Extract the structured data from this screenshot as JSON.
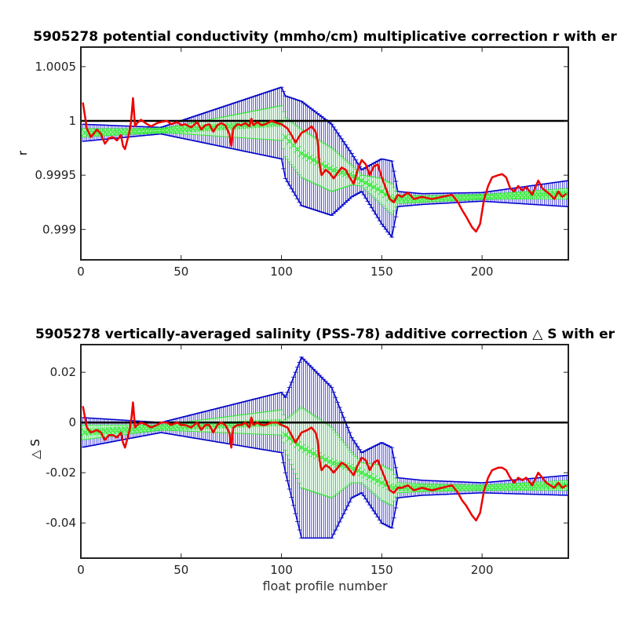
{
  "chart_data": [
    {
      "type": "line",
      "title": "5905278 potential conductivity (mmho/cm) multiplicative correction r with er",
      "xlabel": "",
      "ylabel": "r",
      "xlim": [
        0,
        243
      ],
      "ylim": [
        0.99872,
        1.00068
      ],
      "xticks": [
        "0",
        "50",
        "100",
        "150",
        "200"
      ],
      "yticks": [
        {
          "value": 0.999,
          "label": "0.999"
        },
        {
          "value": 0.9995,
          "label": "0.9995"
        },
        {
          "value": 1.0,
          "label": "1"
        },
        {
          "value": 1.0005,
          "label": "1.0005"
        }
      ],
      "reference_line": 1.0,
      "grid": false,
      "series": [
        {
          "role": "fit-with-error-bars-wide",
          "color": "#0000cc",
          "x": [
            0,
            40,
            100,
            102,
            110,
            125,
            135,
            140,
            150,
            155,
            158,
            170,
            200,
            243
          ],
          "center": [
            0.99989,
            0.99991,
            0.99998,
            0.99985,
            0.9997,
            0.99955,
            0.9995,
            0.99945,
            0.99935,
            0.99928,
            0.99928,
            0.99928,
            0.9993,
            0.99933
          ],
          "half": [
            8e-05,
            3e-05,
            0.00033,
            0.00038,
            0.00048,
            0.00042,
            0.0002,
            0.0001,
            0.0003,
            0.00035,
            7e-05,
            5e-05,
            4e-05,
            0.00012
          ]
        },
        {
          "role": "fit-with-error-bars-narrow",
          "color": "#33ee33",
          "x": [
            0,
            40,
            100,
            102,
            110,
            125,
            135,
            140,
            150,
            155,
            158,
            170,
            200,
            243
          ],
          "center": [
            0.99989,
            0.99991,
            0.99998,
            0.99985,
            0.9997,
            0.99955,
            0.9995,
            0.99945,
            0.99935,
            0.99928,
            0.99928,
            0.99928,
            0.9993,
            0.99933
          ],
          "half": [
            4e-05,
            1.5e-05,
            0.00016,
            0.00018,
            0.00022,
            0.0002,
            9e-05,
            5e-05,
            0.00012,
            0.00014,
            4e-05,
            3e-05,
            2e-05,
            5e-05
          ]
        },
        {
          "role": "profile-estimate",
          "color": "#ee0000",
          "x": [
            1,
            3,
            5,
            8,
            10,
            12,
            14,
            16,
            18,
            20,
            21,
            22,
            24,
            25,
            26,
            27,
            28,
            30,
            33,
            35,
            38,
            40,
            43,
            45,
            48,
            50,
            52,
            55,
            58,
            60,
            62,
            64,
            66,
            68,
            70,
            72,
            74,
            75,
            76,
            78,
            80,
            82,
            84,
            85,
            86,
            88,
            90,
            92,
            95,
            98,
            100,
            103,
            105,
            107,
            110,
            113,
            115,
            117,
            118,
            119,
            120,
            122,
            124,
            126,
            128,
            130,
            132,
            134,
            136,
            138,
            140,
            142,
            144,
            146,
            148,
            150,
            152,
            154,
            156,
            158,
            160,
            163,
            166,
            170,
            175,
            180,
            185,
            188,
            190,
            192,
            195,
            197,
            199,
            201,
            203,
            205,
            208,
            210,
            212,
            214,
            216,
            218,
            220,
            222,
            225,
            228,
            230,
            232,
            234,
            236,
            238,
            240,
            242
          ],
          "y": [
            1.00017,
            0.99993,
            0.99985,
            0.99992,
            0.99988,
            0.99979,
            0.99984,
            0.99985,
            0.99982,
            0.99987,
            0.99977,
            0.99974,
            0.99988,
            0.99999,
            1.00021,
            0.99995,
            0.99998,
            1.00001,
            0.99997,
            0.99995,
            0.99998,
            0.99999,
            1.0,
            0.99997,
            0.99999,
            0.99996,
            0.99997,
            0.99994,
            0.99999,
            0.99992,
            0.99996,
            0.99997,
            0.9999,
            0.99996,
            0.99998,
            0.99996,
            0.99988,
            0.99977,
            0.99993,
            0.99997,
            0.99996,
            0.99998,
            0.99995,
            1.00002,
            0.99996,
            0.99999,
            0.99996,
            0.99997,
            1.0,
            0.99998,
            0.99997,
            0.99993,
            0.99987,
            0.9998,
            0.99989,
            0.99992,
            0.99995,
            0.9999,
            0.99982,
            0.9996,
            0.9995,
            0.99955,
            0.99952,
            0.99947,
            0.99952,
            0.99957,
            0.99955,
            0.99948,
            0.99942,
            0.99955,
            0.99964,
            0.9996,
            0.9995,
            0.99958,
            0.9996,
            0.99948,
            0.99938,
            0.99928,
            0.99925,
            0.99932,
            0.9993,
            0.99934,
            0.99928,
            0.9993,
            0.99928,
            0.9993,
            0.99932,
            0.99925,
            0.99918,
            0.99912,
            0.99902,
            0.99898,
            0.99905,
            0.99928,
            0.9994,
            0.99948,
            0.9995,
            0.99951,
            0.99948,
            0.99938,
            0.99935,
            0.9994,
            0.99936,
            0.99939,
            0.99932,
            0.99945,
            0.99938,
            0.99935,
            0.99932,
            0.99928,
            0.99935,
            0.9993,
            0.99933
          ]
        }
      ]
    },
    {
      "type": "line",
      "title": "5905278 vertically-averaged salinity (PSS-78) additive correction △ S with er",
      "xlabel": "float profile number",
      "ylabel": "△ S",
      "xlim": [
        0,
        243
      ],
      "ylim": [
        -0.054,
        0.031
      ],
      "xticks": [
        "0",
        "50",
        "100",
        "150",
        "200"
      ],
      "yticks": [
        {
          "value": -0.04,
          "label": "-0.04"
        },
        {
          "value": -0.02,
          "label": "-0.02"
        },
        {
          "value": 0.0,
          "label": "0"
        },
        {
          "value": 0.02,
          "label": "0.02"
        }
      ],
      "reference_line": 0.0,
      "grid": false,
      "series": [
        {
          "role": "fit-with-error-bars-wide",
          "color": "#0000cc",
          "x": [
            0,
            40,
            100,
            102,
            110,
            125,
            135,
            140,
            150,
            155,
            158,
            170,
            200,
            243
          ],
          "center": [
            -0.004,
            -0.002,
            0.0,
            -0.005,
            -0.01,
            -0.016,
            -0.018,
            -0.02,
            -0.024,
            -0.026,
            -0.026,
            -0.026,
            -0.026,
            -0.025
          ],
          "half": [
            0.006,
            0.002,
            0.012,
            0.015,
            0.036,
            0.03,
            0.012,
            0.008,
            0.016,
            0.016,
            0.004,
            0.003,
            0.002,
            0.004
          ]
        },
        {
          "role": "fit-with-error-bars-narrow",
          "color": "#33ee33",
          "x": [
            0,
            40,
            100,
            102,
            110,
            125,
            135,
            140,
            150,
            155,
            158,
            170,
            200,
            243
          ],
          "center": [
            -0.004,
            -0.002,
            0.0,
            -0.005,
            -0.01,
            -0.016,
            -0.018,
            -0.02,
            -0.024,
            -0.026,
            -0.026,
            -0.026,
            -0.026,
            -0.025
          ],
          "half": [
            0.003,
            0.001,
            0.005,
            0.006,
            0.016,
            0.014,
            0.006,
            0.004,
            0.007,
            0.007,
            0.002,
            0.0015,
            0.001,
            0.002
          ]
        },
        {
          "role": "profile-estimate",
          "color": "#ee0000",
          "x": [
            1,
            3,
            5,
            8,
            10,
            12,
            14,
            16,
            18,
            20,
            21,
            22,
            24,
            25,
            26,
            27,
            28,
            30,
            33,
            35,
            38,
            40,
            43,
            45,
            48,
            50,
            52,
            55,
            58,
            60,
            62,
            64,
            66,
            68,
            70,
            72,
            74,
            75,
            76,
            78,
            80,
            82,
            84,
            85,
            86,
            88,
            90,
            92,
            95,
            98,
            100,
            103,
            105,
            107,
            110,
            113,
            115,
            117,
            118,
            119,
            120,
            122,
            124,
            126,
            128,
            130,
            132,
            134,
            136,
            138,
            140,
            142,
            144,
            146,
            148,
            150,
            152,
            154,
            156,
            158,
            160,
            163,
            166,
            170,
            175,
            180,
            185,
            188,
            190,
            192,
            195,
            197,
            199,
            201,
            203,
            205,
            208,
            210,
            212,
            214,
            216,
            218,
            220,
            222,
            225,
            228,
            230,
            232,
            234,
            236,
            238,
            240,
            242
          ],
          "y": [
            0.0065,
            -0.002,
            -0.004,
            -0.003,
            -0.004,
            -0.007,
            -0.005,
            -0.005,
            -0.006,
            -0.004,
            -0.008,
            -0.01,
            -0.004,
            0.0,
            0.008,
            -0.002,
            -0.001,
            0.0,
            -0.001,
            -0.002,
            -0.001,
            0.0,
            0.0,
            -0.001,
            0.0,
            -0.001,
            -0.001,
            -0.002,
            0.0,
            -0.003,
            -0.001,
            -0.001,
            -0.004,
            -0.001,
            0.0,
            -0.001,
            -0.004,
            -0.01,
            -0.002,
            -0.001,
            -0.001,
            0.0,
            -0.002,
            0.002,
            -0.001,
            0.0,
            -0.001,
            -0.001,
            0.0,
            0.0,
            -0.001,
            -0.002,
            -0.005,
            -0.008,
            -0.004,
            -0.003,
            -0.002,
            -0.004,
            -0.007,
            -0.015,
            -0.019,
            -0.017,
            -0.018,
            -0.02,
            -0.018,
            -0.016,
            -0.017,
            -0.019,
            -0.021,
            -0.017,
            -0.014,
            -0.015,
            -0.019,
            -0.016,
            -0.015,
            -0.019,
            -0.023,
            -0.027,
            -0.028,
            -0.026,
            -0.026,
            -0.025,
            -0.027,
            -0.026,
            -0.027,
            -0.026,
            -0.025,
            -0.028,
            -0.031,
            -0.033,
            -0.037,
            -0.039,
            -0.036,
            -0.027,
            -0.022,
            -0.019,
            -0.018,
            -0.018,
            -0.019,
            -0.022,
            -0.024,
            -0.022,
            -0.023,
            -0.022,
            -0.025,
            -0.02,
            -0.022,
            -0.024,
            -0.025,
            -0.026,
            -0.024,
            -0.026,
            -0.025
          ]
        }
      ]
    }
  ]
}
